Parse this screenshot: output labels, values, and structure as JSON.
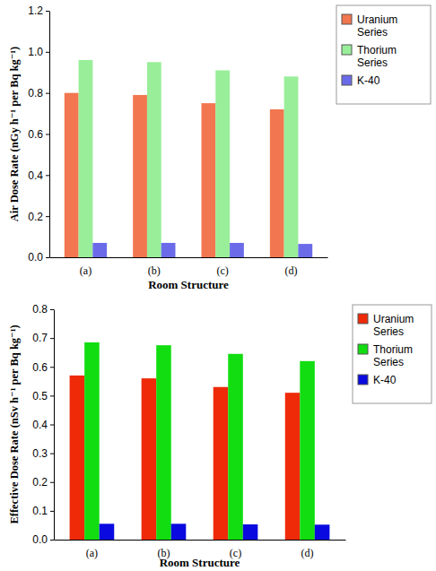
{
  "chart_data": [
    {
      "type": "bar",
      "x_label": "Room Structure",
      "y_label": "Air Dose Rate (nGy h⁻¹ per Bq kg⁻¹)",
      "categories": [
        "(a)",
        "(b)",
        "(c)",
        "(d)"
      ],
      "series": [
        {
          "name": "Uranium Series",
          "color": "#f2764f",
          "values": [
            0.8,
            0.79,
            0.75,
            0.72
          ]
        },
        {
          "name": "Thorium Series",
          "color": "#99ee99",
          "values": [
            0.96,
            0.95,
            0.91,
            0.88
          ]
        },
        {
          "name": "K-40",
          "color": "#6b6bea",
          "values": [
            0.07,
            0.07,
            0.07,
            0.065
          ]
        }
      ],
      "ylim": [
        0,
        1.2
      ],
      "yticks": [
        {
          "value": 0,
          "label": "0.0"
        },
        0.2,
        0.4,
        0.6,
        0.8,
        {
          "value": 1,
          "label": "1.0"
        },
        1.2
      ],
      "grid": false,
      "legend": "right"
    },
    {
      "type": "bar",
      "x_label": "Room Structure",
      "y_label": "Effective Dose Rate (nSv h⁻¹ per Bq kg⁻¹)",
      "categories": [
        "(a)",
        "(b)",
        "(c)",
        "(d)"
      ],
      "series": [
        {
          "name": "Uranium Series",
          "color": "#ee2a08",
          "values": [
            0.57,
            0.56,
            0.53,
            0.51
          ]
        },
        {
          "name": "Thorium Series",
          "color": "#11dd11",
          "values": [
            0.685,
            0.675,
            0.645,
            0.62
          ]
        },
        {
          "name": "K-40",
          "color": "#0a0ae0",
          "values": [
            0.055,
            0.055,
            0.053,
            0.052
          ]
        }
      ],
      "ylim": [
        0,
        0.8
      ],
      "yticks": [
        {
          "value": 0,
          "label": "0.0"
        },
        0.1,
        0.2,
        0.3,
        0.4,
        0.5,
        0.6,
        0.7,
        0.8
      ],
      "grid": false,
      "legend": "right"
    }
  ]
}
